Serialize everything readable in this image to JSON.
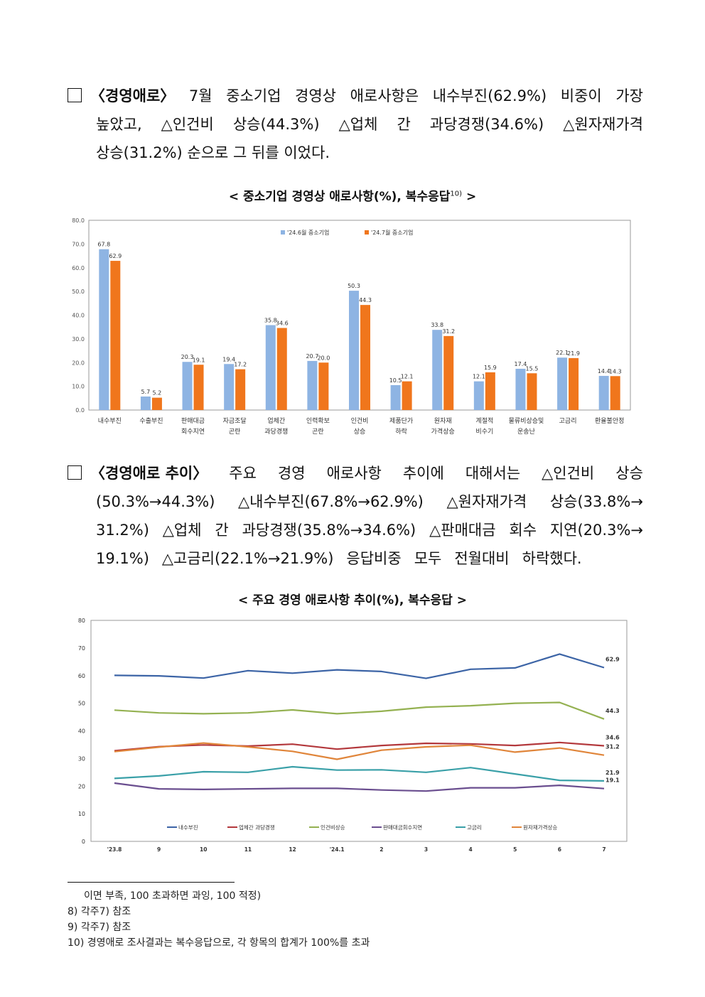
{
  "para1": {
    "heading": "〈경영애로〉",
    "line1_rest": [
      "7월",
      "중소기업",
      "경영상",
      "애로사항은",
      "내수부진(62.9%)",
      "비중이",
      "가장"
    ],
    "line2": [
      "높았고,",
      "△인건비",
      "상승(44.3%)",
      "△업체",
      "간",
      "과당경쟁(34.6%)",
      "△원자재가격"
    ],
    "line3": "상승(31.2%) 순으로 그 뒤를 이었다."
  },
  "chart1_caption": "< 중소기업 경영상 애로사항(%), 복수응답",
  "chart1_caption_sup": "10)",
  "chart1_caption_end": ">",
  "chart_data": [
    {
      "type": "bar",
      "categories": [
        "내수부진",
        "수출부진",
        "판매대금 회수지연",
        "자금조달 곤란",
        "업체간 과당경쟁",
        "인력확보 곤란",
        "인건비 상승",
        "제품단가 하락",
        "원자재 가격상승",
        "계절적 비수기",
        "물류비상승및 운송난",
        "고금리",
        "환율불안정"
      ],
      "category_lines": [
        [
          "내수부진"
        ],
        [
          "수출부진"
        ],
        [
          "판매대금",
          "회수지연"
        ],
        [
          "자금조달",
          "곤란"
        ],
        [
          "업체간",
          "과당경쟁"
        ],
        [
          "인력확보",
          "곤란"
        ],
        [
          "인건비",
          "상승"
        ],
        [
          "제품단가",
          "하락"
        ],
        [
          "원자재",
          "가격상승"
        ],
        [
          "계절적",
          "비수기"
        ],
        [
          "물류비상승및",
          "운송난"
        ],
        [
          "고금리"
        ],
        [
          "환율불안정"
        ]
      ],
      "series": [
        {
          "name": "'24.6월 중소기업",
          "color": "#8EB4E3",
          "values": [
            67.8,
            5.7,
            20.3,
            19.4,
            35.8,
            20.7,
            50.3,
            10.5,
            33.8,
            12.1,
            17.4,
            22.1,
            14.4
          ]
        },
        {
          "name": "'24.7월 중소기업",
          "color": "#F0761C",
          "values": [
            62.9,
            5.2,
            19.1,
            17.2,
            34.6,
            20.0,
            44.3,
            12.1,
            31.2,
            15.9,
            15.5,
            21.9,
            14.3
          ]
        }
      ],
      "ylim": [
        0,
        80
      ],
      "yticks": [
        "0.0",
        "10.0",
        "20.0",
        "30.0",
        "40.0",
        "50.0",
        "60.0",
        "70.0",
        "80.0"
      ],
      "legend": "top"
    },
    {
      "type": "line",
      "x": [
        "'23.8",
        "9",
        "10",
        "11",
        "12",
        "'24.1",
        "2",
        "3",
        "4",
        "5",
        "6",
        "7"
      ],
      "series": [
        {
          "name": "내수부진",
          "color": "#3C64A6",
          "values": [
            60.1,
            59.9,
            59.1,
            61.8,
            60.9,
            62.1,
            61.5,
            59.0,
            62.3,
            62.8,
            67.8,
            62.9
          ]
        },
        {
          "name": "업체간 과당경쟁",
          "color": "#B3383C",
          "values": [
            32.8,
            34.3,
            34.9,
            34.5,
            35.2,
            33.4,
            34.7,
            35.5,
            35.3,
            34.7,
            35.8,
            34.6
          ]
        },
        {
          "name": "인건비상승",
          "color": "#94B151",
          "values": [
            47.5,
            46.5,
            46.2,
            46.5,
            47.6,
            46.2,
            47.1,
            48.6,
            49.1,
            50.0,
            50.3,
            44.3
          ]
        },
        {
          "name": "판매대금회수지연",
          "color": "#6A4E8F",
          "values": [
            21.1,
            19.0,
            18.8,
            19.0,
            19.2,
            19.2,
            18.6,
            18.2,
            19.4,
            19.4,
            20.3,
            19.1
          ]
        },
        {
          "name": "고금리",
          "color": "#3AA0A8",
          "values": [
            22.8,
            23.7,
            25.2,
            25.0,
            27.0,
            25.8,
            25.9,
            25.0,
            26.7,
            24.4,
            22.1,
            21.9
          ]
        },
        {
          "name": "원자재가격상승",
          "color": "#E0853A",
          "values": [
            32.5,
            34.1,
            35.6,
            34.2,
            32.6,
            29.7,
            33.0,
            34.2,
            34.8,
            32.3,
            33.8,
            31.2
          ]
        }
      ],
      "end_labels": [
        "62.9",
        "34.6",
        "44.3",
        "19.1",
        "21.9",
        "31.2"
      ],
      "ylim": [
        0,
        80
      ],
      "yticks": [
        "0",
        "10",
        "20",
        "30",
        "40",
        "50",
        "60",
        "70",
        "80"
      ],
      "legend": "bottom"
    }
  ],
  "para2": {
    "heading": "〈경영애로 추이〉",
    "line1_rest": [
      "주요",
      "경영",
      "애로사항",
      "추이에",
      "대해서는",
      "△인건비",
      "상승"
    ],
    "line2": [
      "(50.3%→44.3%)",
      "△내수부진(67.8%→62.9%)",
      "△원자재가격",
      "상승(33.8%→"
    ],
    "line3": [
      "31.2%)",
      "△업체",
      "간",
      "과당경쟁(35.8%→34.6%)",
      "△판매대금",
      "회수",
      "지연(20.3%→"
    ],
    "line4": [
      "19.1%)",
      "△고금리(22.1%→21.9%)",
      "응답비중",
      "모두",
      "전월대비",
      "하락했다."
    ]
  },
  "chart2_caption": "< 주요 경영 애로사항 추이(%), 복수응답 >",
  "footnotes": [
    "이면 부족, 100 초과하면 과잉, 100 적정)",
    "8) 각주7) 참조",
    "9) 각주7) 참조",
    "10) 경영애로 조사결과는 복수응답으로, 각 항목의 합계가 100%를 초과"
  ]
}
